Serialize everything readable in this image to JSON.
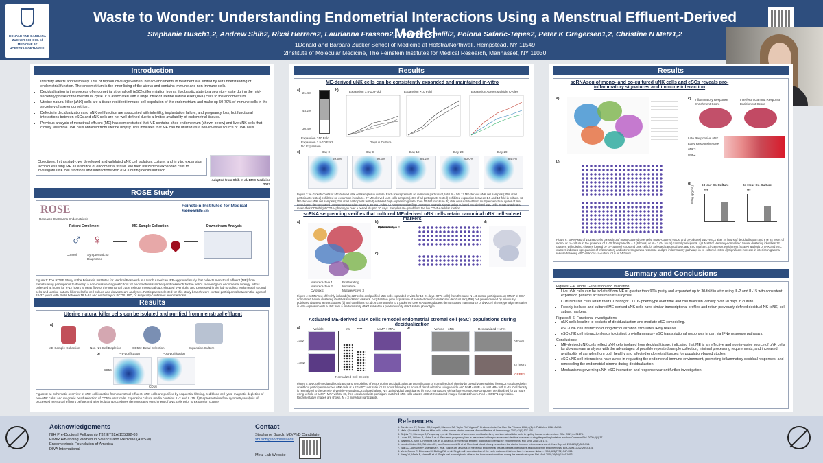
{
  "header": {
    "logo_text": "DONALD AND BARBARA ZUCKER SCHOOL of MEDICINE AT HOFSTRA/NORTHWELL",
    "title": "Waste to Wonder: Understanding Endometrial Interactions Using a Menstrual Effluent-Derived Model",
    "authors": "Stephanie Busch1,2, Andrew Shih2, Rixsi Herrera2, Laurianna Frasson2, Houman Khalili2, Polona Safaric-Tepes2, Peter K Gregersen1,2, Christine N Metz1,2",
    "affiliation_1": "1Donald and Barbara Zucker School of Medicine at Hofstra/Northwell, Hempstead, NY 11549",
    "affiliation_2": "2Institute of Molecular Medicine, The Feinstein Institutes for Medical Research, Manhasset, NY 11030"
  },
  "intro": {
    "heading": "Introduction",
    "bullets": [
      "Infertility affects approximately 13% of reproductive age women, but advancements in treatment are limited by our understanding of endometrial function. The endometrium is the inner lining of the uterus and contains immune and non-immune cells.",
      "Decidualization is the process of endometrial stromal cell (eSC) differentiation from a fibroblastic state to a secretory state during the mid-secretory phase of the menstrual cycle. It is associated with a large influx of uterine natural killer (uNK) cells to the endometrium.",
      "Uterine natural killer (uNK) cells are a tissue-resident immune cell population of the endometrium and make up 50-70% of immune cells in the secretory phase endometrium.",
      "Defects in decidualization and uNK cell function are associated with infertility, implantation failure, and pregnancy loss, but functional interactions between eSCs and uNK cells are not well defined due to a limited availability of endometrial tissues.",
      "Previous analysis of menstrual effluent (ME) has demonstrated that ME contains shed endometrium (shown below) and live uNK cells that closely resemble uNK cells obtained from uterine biopsy. This indicates that ME can be utilized as a non-invasive source of uNK cells."
    ],
    "objectives": "Objectives: In this study, we developed and validated uNK cell isolation, culture, and in vitro expansion techniques using ME as a source of endometrial tissue. We then utilized the expanded cells to investigate uNK cell functions and interactions with eSCs during decidualization.",
    "image_caption": "Adapted from Shih et al. BMC Medicine 2022"
  },
  "rose": {
    "heading": "ROSE Study",
    "rose_logo": "ROSE",
    "rose_sub": "Research OutSmarts Endometriosis",
    "feinstein": "Feinstein Institutes for Medical Research",
    "northwell": "Northwell Health",
    "step1": "Patient Enrollment",
    "step2": "ME-Sample Collection",
    "step3": "Downstream Analysis",
    "control": "Control",
    "symptomatic": "Symptomatic or Diagnosed",
    "caption": "Figure 1: The ROSE Study at the Feinstein Institutes for Medical Research is a North American IRB-approved study that collects menstrual effluent (ME) from menstruating participants to develop a non-invasive diagnostic tool for endometriosis and expand research for the field's knowledge of endometrial biology. ME is collected at home for 6-12 hours at peak flow of the menstrual cycle using a menstrual cup, shipped overnight, and processed in the lab to collect endometrial stromal cells and uterine natural killer cells for cell culture and downstream analyses. Participants selected for this study branch were control participants between the ages of 18-37 years with BMIs between 18.5-24 and no history of PCOS, PID, or surgically-confirmed endometriosis."
  },
  "results_left": {
    "heading": "Results",
    "subheading": "Uterine natural killer cells can be isolated and purified from menstrual effluent",
    "label_a": "a)",
    "label_b": "b)",
    "steps": [
      "ME-Sample Collection",
      "Non-NK Cell Depletion",
      "CD56+ Bead Selection",
      "Expansion Culture"
    ],
    "pre": "Pre-purification",
    "post": "Post-purification",
    "axis_x": "CD16",
    "axis_y": "CD56",
    "caption": "Figure 2: a) Schematic overview of uNK cell isolation from menstrual effluent. uNK cells are purified by sequential filtering, red blood cell lysis, magnetic depletion of non-uNK cells, and magnetic bead selection of CD56+ uNK cells. Expansion culture media contains IL-2 and IL-15. b) Representative flow cytometry analysis of processed menstrual effluent before and after isolation procedures demonstrates enrichment of uNK cells prior to expansion culture."
  },
  "results_mid": {
    "heading": "Results",
    "s1_title": "ME-derived uNK cells can be consistently expanded and maintained in-vitro",
    "s1_a": "a)",
    "s1_b": "b)",
    "s1_c": "c)",
    "s1_pct": [
      "21.4%",
      "48.2%",
      "30.4%"
    ],
    "s1_legend": [
      "Expansion >10 Fold",
      "Expansion 1.5-10 Fold",
      "No Expansion"
    ],
    "s1_b_titles": [
      "Expansion 1.5-10 Fold",
      "Expansion >10 Fold",
      "Expansion Across Multiple Cycles"
    ],
    "s1_xlabel": "Days in Culture",
    "s1_days": [
      "Day 0",
      "Day 9",
      "Day 19",
      "Day 23",
      "Day 29"
    ],
    "s1_day_pct": [
      "69.5%",
      "80.3%",
      "84.2%",
      "90.0%",
      "84.4%"
    ],
    "s1_cap": "Figure 3: a) Growth charts of ME-derived uNK cell samples in culture. Each line represents an individual participant, total N = 56. 17 ME-derived uNK cell samples (30% of all participants tested) exhibited no expansion in culture. 27 ME-derived uNK cells samples (48% of all participants tested) exhibited expansion between 1.5 and 10-fold in culture. 12 ME-derived uNK cell samples (21% of all participants tested) exhibited high expansion greater than 10-fold in culture. b) uNK cells isolated from multiple menstrual cycles of five participants demonstrated consistent expansion patterns across cycles. c) Representative flow cytometry analysis showing that cultured ME-derived uNK cells remain viable and retain their CD56bright CD16- phenotype over a period of up to 30 days. Samples are gated from the live CD45+ cellular fraction.",
    "s2_title": "scRNA sequencing verifies that cultured ME-derived uNK cells retain canonical uNK cell subset markers",
    "s2_a": "a)",
    "s2_b": "b)",
    "s2_c": "c)",
    "s2_d": "d)",
    "s2_legend": [
      "Mature/Active 1",
      "Mature/Active 2",
      "Cytotoxic",
      "Proliferating",
      "Immature",
      "Mature/Active 3"
    ],
    "s2_rows": [
      "Proliferating",
      "Mature/Active",
      "Mature/Active 2",
      "Cytotoxic",
      "Immature"
    ],
    "s2_cap": "Figure 4: scRNAseq of freshly isolated (22,327 cells) and purified uNK cells expanded in vitro for 18-21 days (9773 cells) from the same N = 3 control participants. a) UMAP of CCA-normalized Seurat clustering identifies six distinct clusters. b-c) Relative gene expression of selected canonical uNK and decidual NK (dNK) cell genes defined by previously published datasets across clusters (b) and conditions (c). d) Anchor transfer to a published dNK scRNAseq dataset demonstrates maintenance of dNK cell phenotype alignment after in vitro expansion with a shift from a predominantly dNK1 subset to a predominantly dNK3 subset phenotype.",
    "s3_title": "Activated ME-derived uNK cells remodel endometrial stromal cell (eSC) populations during decidualization",
    "s3_a": "a)",
    "s3_b": "b)",
    "s3_vehicle": "Vehicle",
    "s3_camp": "cAMP + MPA",
    "s3_rows": [
      "-uNK",
      "+uNK"
    ],
    "s3_ylabel": "Normalized Cell Density",
    "s3_sig": "****",
    "s3_ns": "ns",
    "s3_cond": [
      "Vehicle + uNK",
      "Decidualized + uNK"
    ],
    "s3_time": [
      "0 hours",
      "22 hours"
    ],
    "s3_legend": "IGFBP1",
    "s3_cap": "Figure 5: uNK cell-mediated localization and remodeling of eSCs during decidualization. a) Quantification of normalized cell density by crystal violet staining for eSCs cocultured with or without participant-matched uNK cells at a 2:1 eSC:uNK ratio for 24 hours following 24 hours of decidualization using vehicle or 0.5mM cAMP + 0.1uM MPA with IL-15. Cell density is normalized to the density of vehicle-treated eSCs cultured alone. N = 16 individual participants. b) eSCs transduced with a fluorescent IGFBP1 reporter, decidualized for 24 hours using vehicle or cAMP+MPA with IL-15, then cocultured with participant-matched uNK cells at a 2:1 eSC:uNK ratio and imaged for 22-24 hours. Red = IGFBP1 expression. Representative images are shown. N = 3 individual participants."
  },
  "results_right": {
    "heading": "Results",
    "s1_title": "scRNAseq of mono- and co-cultured uNK cells and eSCs reveals pro-inflammatory signatures and immune interaction",
    "labels": [
      "a)",
      "b)",
      "c)",
      "d)"
    ],
    "heat_titles": [
      "Inflammatory Response Enrichment Score",
      "Interferon Gamma Response Enrichment Score"
    ],
    "heat_rows": [
      "Late Responsive uNK",
      "Early Responsive uNK",
      "uNK3",
      "uNK2"
    ],
    "coc_6h": "6 Hour Co-Culture",
    "coc_24h": "24 Hour Co-Culture",
    "ifn_ylabel": "IFNg (pg/mL)",
    "sig": "***",
    "cap": "Figure 6: scRNAseq of 163,880 cells consisting of mono-cultured uNK cells, mono-cultured eSCs, and co-cultured uNK+eSCs after 24 hours of decidualization and 6 or 24 hours of mono- or co-culture in the presence of IL-15 from paired N = 2 (6 hours) or N = 3 (24 hours) control participants. a) UMAP of Harmony-normalized Seurat clustering identifies 12 clusters, with distinct clusters formed by co-cultured eSCs and uNK cells. b) Selected canonical uNK and eSC markers. c) Gene set enrichment (GSEA) analysis of uNK and eSC clusters indicates upregulation of inflammatory and interferon gamma response and pro-inflammatory pathways in co-cultured eSCs. d) Significant increase in interferon gamma release following eSC-uNK cell co-culture for 6 or 24 hours."
  },
  "summary": {
    "heading": "Summary and Conclusions",
    "fig24": "Figures 2-4: Model Generation and Validation",
    "b1": [
      "Live uNK cells can be isolated from ME at greater than 90% purity and expanded up to 30-fold in vitro using IL-2 and IL-15 with consistent expansion patterns across menstrual cycles.",
      "Cultured uNK cells retain their CD56bright CD16- phenotype over time and can maintain viability over 30 days in culture.",
      "Freshly isolated and cultured ME-derived uNK cells have similar transcriptional profiles and retain previously defined decidual NK (dNK) cell subset markers."
    ],
    "fig56": "Figures 5-6: Functional Investigations",
    "b2": [
      "uNK cells localize to pockets of decidualization and mediate eSC remodeling.",
      "eSC-uNK cell interaction during decidualization stimulates IFNγ release.",
      "eSC-uNK cell interaction leads to distinct pro-inflammatory eSC transcriptional responses in part via IFNγ response pathways."
    ],
    "conclusions": "Conclusions:",
    "b3": [
      "ME-derived uNK cells reflect uNK cells isolated from decidual tissue, indicating that ME is an effective and non-invasive source of uNK cells for downstream analyses with the advantages of possible repeated sample collection, minimal processing requirements, and increased availability of samples from both healthy and affected endometrial tissues for population-based studies.",
      "eSC-uNK cell interactions have a role in regulating the endometrial immune environment, promoting inflammatory decidual responses, and remodeling the endometrial stroma during decidualization.",
      "Mechanisms governing uNK-eSC interaction and response warrant further investigation."
    ]
  },
  "footer": {
    "ack_head": "Acknowledgements",
    "ack_lines": [
      "NIH Pre-Doctoral Fellowship T32 ET32AI155392-03",
      "FIMIR Advancing Women in Science and Medicine (AWSM)",
      "Endometriosis Foundation of America",
      "DIVA International"
    ],
    "contact_head": "Contact",
    "contact_lines": [
      "Stephanie Busch, MD/PhD Candidate",
      "sbusch@northwell.edu"
    ],
    "lab_site": "Metz Lab Website",
    "ref_head": "References",
    "refs": [
      "1. Zondervan KT, Becker CM, Koga K, Missmer SA, Taylor RN, Vigano P. Endometriosis. Nat Rev Dis Primers. 2018;4(1):9. Published 2018 Jul 19.",
      "2. Male V, Moffett A. Natural killer cells in the human uterine mucosa. Annual Review of Immunology. 2023;41(1):127-151.",
      "3. Strijbis PJ, Morpurgo J, Pelupessy L, et al. Clearance of senescent decidual cells by uterine natural killer cells in cycling human endometrium. Elife. 2017;6:e31274.",
      "4. Lucas ES, Vrljicak P, Muter J, et al. Recurrent pregnancy loss is associated with a pro-senescent decidual response during the peri-implantation window. Commun Biol. 2020;3(1):37.",
      "5. Warren LA, Shih A, Renteira SM, et al. Analysis of menstrual effluent: diagnostic potential for endometriosis. Mol Med. 2018;24(1):1.",
      "6. van der Molen RG, Schutten JH, van Cranenbroek B, et al. Menstrual blood closely resembles the uterine immune micro-environment. Hum Reprod. 2014;29(2):303-314.",
      "7. Shih AJ, Adelson RP, Vashistha H, et al. Single-cell analysis of menstrual endometrial tissues defines phenotypes associated with endometriosis. BMC Med. 2022;20(1):315.",
      "8. Vento-Tormo R, Efremova M, Botting RA, et al. Single-cell reconstruction of the early maternal-fetal interface in humans. Nature. 2018;563(7731):347-353.",
      "9. Wang W, Vilella F, Alama P, et al. Single-cell transcriptomic atlas of the human endometrium during the menstrual cycle. Nat Med. 2020;26(10):1644-1653."
    ]
  }
}
